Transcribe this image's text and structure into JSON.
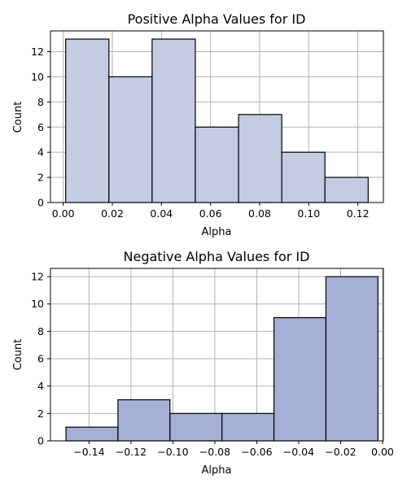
{
  "chart_data": [
    {
      "type": "bar",
      "title": "Positive Alpha Values for ID",
      "xlabel": "Alpha",
      "ylabel": "Count",
      "bins": [
        {
          "x0": 0.001,
          "x1": 0.0186,
          "value": 13
        },
        {
          "x0": 0.0186,
          "x1": 0.0362,
          "value": 10
        },
        {
          "x0": 0.0362,
          "x1": 0.0538,
          "value": 13
        },
        {
          "x0": 0.0538,
          "x1": 0.0714,
          "value": 6
        },
        {
          "x0": 0.0714,
          "x1": 0.089,
          "value": 7
        },
        {
          "x0": 0.089,
          "x1": 0.1066,
          "value": 4
        },
        {
          "x0": 0.1066,
          "x1": 0.1242,
          "value": 2
        }
      ],
      "xlim": [
        -0.0052,
        0.1304
      ],
      "ylim": [
        0,
        13.65
      ],
      "xticks": [
        0.0,
        0.02,
        0.04,
        0.06,
        0.08,
        0.1,
        0.12
      ],
      "xtick_labels": [
        "0.00",
        "0.02",
        "0.04",
        "0.06",
        "0.08",
        "0.10",
        "0.12"
      ],
      "yticks": [
        0,
        2,
        4,
        6,
        8,
        10,
        12
      ],
      "ytick_labels": [
        "0",
        "2",
        "4",
        "6",
        "8",
        "10",
        "12"
      ],
      "bar_color": "#c3cce0",
      "grid": true
    },
    {
      "type": "bar",
      "title": "Negative Alpha Values for ID",
      "xlabel": "Alpha",
      "ylabel": "Count",
      "bins": [
        {
          "x0": -0.151,
          "x1": -0.1262,
          "value": 1
        },
        {
          "x0": -0.1262,
          "x1": -0.1014,
          "value": 3
        },
        {
          "x0": -0.1014,
          "x1": -0.0766,
          "value": 2
        },
        {
          "x0": -0.0766,
          "x1": -0.0518,
          "value": 2
        },
        {
          "x0": -0.0518,
          "x1": -0.027,
          "value": 9
        },
        {
          "x0": -0.027,
          "x1": -0.0022,
          "value": 12
        }
      ],
      "xlim": [
        -0.1584,
        0.0004
      ],
      "ylim": [
        0,
        12.6
      ],
      "xticks": [
        -0.14,
        -0.12,
        -0.1,
        -0.08,
        -0.06,
        -0.04,
        -0.02,
        0.0
      ],
      "xtick_labels": [
        "−0.14",
        "−0.12",
        "−0.10",
        "−0.08",
        "−0.06",
        "−0.04",
        "−0.02",
        "0.00"
      ],
      "yticks": [
        0,
        2,
        4,
        6,
        8,
        10,
        12
      ],
      "ytick_labels": [
        "0",
        "2",
        "4",
        "6",
        "8",
        "10",
        "12"
      ],
      "bar_color": "#a4b0d6",
      "grid": true
    }
  ]
}
